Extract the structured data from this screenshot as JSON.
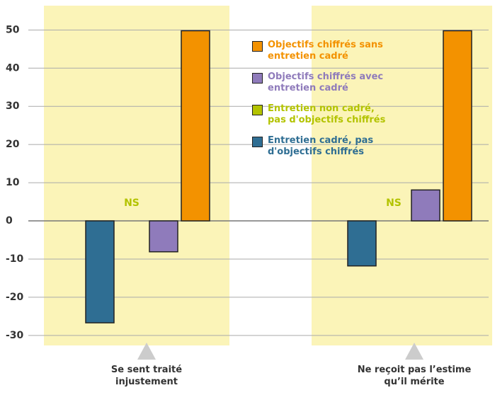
{
  "chart_data": {
    "type": "bar",
    "categories": [
      "Se sent traité injustement",
      "Ne reçoit pas l’estime qu’il mérite"
    ],
    "series": [
      {
        "name": "Entretien cadré, pas d'objectifs chiffrés",
        "color": "#2f6e93",
        "values": [
          -26.7,
          -11.8
        ]
      },
      {
        "name": "Entretien non cadré, pas d'objectifs chiffrés",
        "color": "#b3c300",
        "values": [
          null,
          null
        ],
        "value_labels": [
          "NS",
          "NS"
        ]
      },
      {
        "name": "Objectifs chiffrés avec entretien cadré",
        "color": "#8f7bbb",
        "values": [
          -8.1,
          8.1
        ]
      },
      {
        "name": "Objectifs chiffrés sans entretien cadré",
        "color": "#f39200",
        "values": [
          49.8,
          49.8
        ]
      }
    ],
    "ylim": [
      -33,
      56
    ],
    "yticks": [
      -30,
      -20,
      -10,
      0,
      10,
      20,
      30,
      40,
      50
    ],
    "grid": true
  }
}
